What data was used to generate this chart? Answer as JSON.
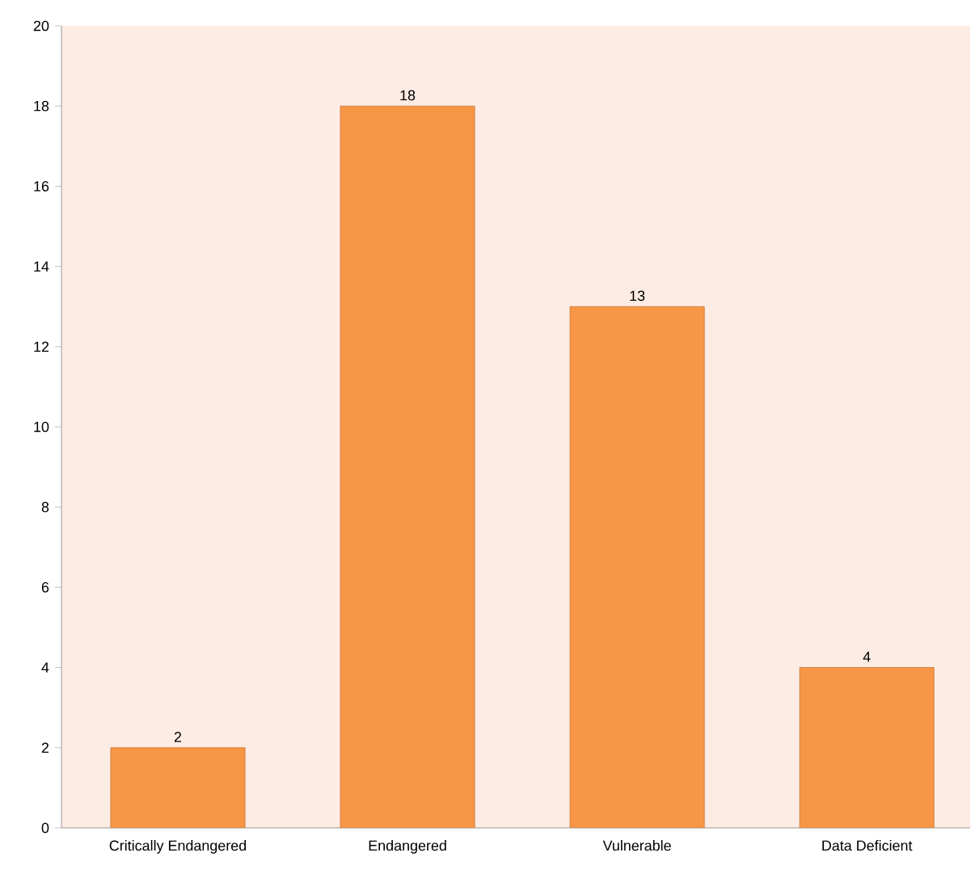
{
  "chart_data": {
    "type": "bar",
    "categories": [
      "Critically Endangered",
      "Endangered",
      "Vulnerable",
      "Data Deficient"
    ],
    "values": [
      2,
      18,
      13,
      4
    ],
    "color": "#f79646",
    "ylim": [
      0,
      20
    ],
    "yticks": [
      0,
      2,
      4,
      6,
      8,
      10,
      12,
      14,
      16,
      18,
      20
    ],
    "data_labels": true
  }
}
